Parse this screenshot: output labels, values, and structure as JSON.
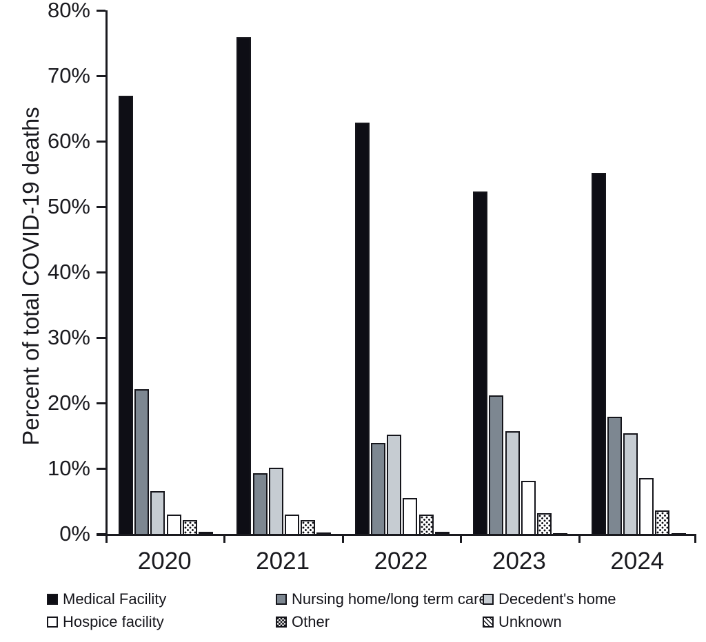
{
  "chart_data": {
    "type": "bar",
    "title": "",
    "xlabel": "",
    "ylabel": "Percent of total COVID-19 deaths",
    "ylim": [
      0,
      80
    ],
    "ytick_step": 10,
    "ytick_suffix": "%",
    "grid": false,
    "legend_position": "bottom",
    "categories": [
      "2020",
      "2021",
      "2022",
      "2023",
      "2024"
    ],
    "series": [
      {
        "name": "Medical Facility",
        "pattern": "solid",
        "fill": "#0e0e15",
        "values": [
          66.9,
          75.9,
          62.8,
          52.3,
          55.2
        ]
      },
      {
        "name": "Nursing home/long term care",
        "pattern": "solid",
        "fill": "#7d8791",
        "values": [
          22.1,
          9.3,
          13.9,
          21.2,
          17.9
        ]
      },
      {
        "name": "Decedent's home",
        "pattern": "solid",
        "fill": "#c6ccd2",
        "values": [
          6.5,
          10.1,
          15.2,
          15.7,
          15.4
        ]
      },
      {
        "name": "Hospice facility",
        "pattern": "solid",
        "fill": "#ffffff",
        "values": [
          2.9,
          3.0,
          5.5,
          8.1,
          8.5
        ]
      },
      {
        "name": "Other",
        "pattern": "dots",
        "fill": "#ffffff",
        "values": [
          2.1,
          2.1,
          3.0,
          3.2,
          3.6
        ]
      },
      {
        "name": "Unknown",
        "pattern": "diagonal-stripes",
        "fill": "#ffffff",
        "values": [
          0.3,
          0.2,
          0.3,
          0.1,
          0.1
        ]
      }
    ],
    "colors": {
      "axis": "#1a1a1f",
      "bar_border": "#15151b",
      "medical_facility": "#0e0e15",
      "nursing_home": "#7d8791",
      "decedents_home": "#c6ccd2",
      "hospice_facility": "#ffffff"
    }
  }
}
